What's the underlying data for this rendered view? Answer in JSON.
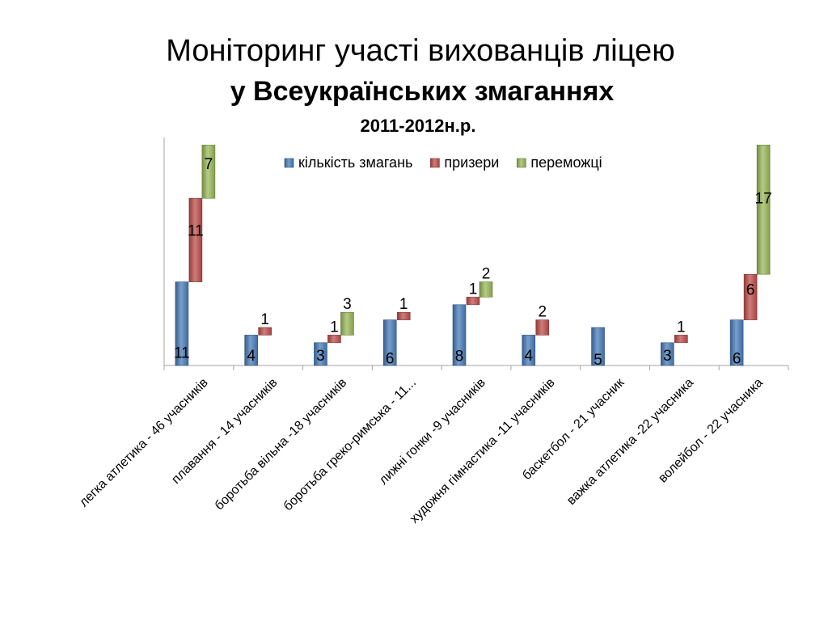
{
  "title": {
    "line1": "Моніторинг участі вихованців ліцею",
    "line2": "у Всеукраїнських змаганнях",
    "line3": "2011-2012н.р."
  },
  "chart_data": {
    "type": "bar",
    "stacked": true,
    "categories": [
      "легка атлетика - 46 учасників",
      "плавання - 14 учасників",
      "боротьба вільна -18 учасників",
      "боротьба греко-римська - 11...",
      "лижні гонки -9 учасників",
      "художня гімнастика -11 учасників",
      "баскетбол - 21 учасник",
      "важка атлетика -22 учасника",
      "волейбол - 22 учасника"
    ],
    "series": [
      {
        "name": "кількість змагань",
        "color": "#4a7ebb",
        "values": [
          11,
          4,
          3,
          6,
          8,
          4,
          5,
          3,
          6
        ]
      },
      {
        "name": "призери",
        "color": "#c0504d",
        "values": [
          11,
          1,
          1,
          1,
          1,
          2,
          0,
          1,
          6
        ]
      },
      {
        "name": "переможці",
        "color": "#9bbb59",
        "values": [
          7,
          0,
          3,
          0,
          2,
          0,
          0,
          0,
          17
        ]
      }
    ],
    "legend_position": "top",
    "grid": false,
    "ylim": [
      0,
      30
    ]
  }
}
